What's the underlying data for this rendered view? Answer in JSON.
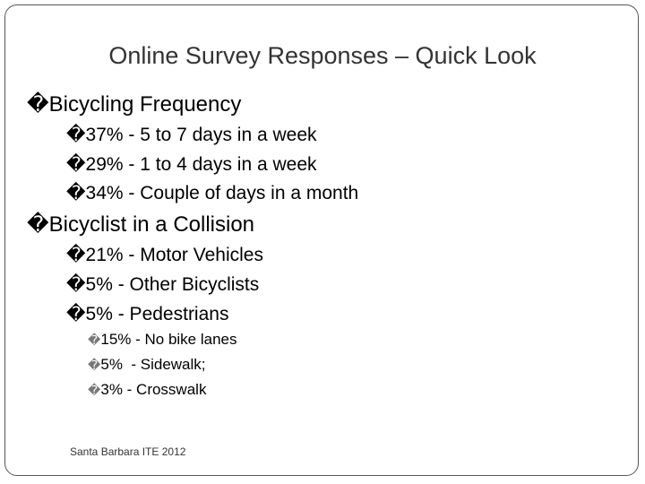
{
  "slide": {
    "title": "Online Survey Responses – Quick Look",
    "sections": [
      {
        "heading": "Bicycling Frequency",
        "items": [
          "37% - 5 to 7 days in a week",
          "29% - 1 to 4 days in a week",
          "34% - Couple of days in a month"
        ]
      },
      {
        "heading": "Bicyclist in a Collision",
        "items": [
          "21% - Motor Vehicles",
          "5% - Other Bicyclists",
          "5% - Pedestrians"
        ],
        "subitems": [
          "15% - No bike lanes",
          "5%  - Sidewalk;",
          "3% - Crosswalk"
        ]
      }
    ],
    "footer": "Santa Barbara ITE 2012",
    "bullet_glyph": "�"
  }
}
